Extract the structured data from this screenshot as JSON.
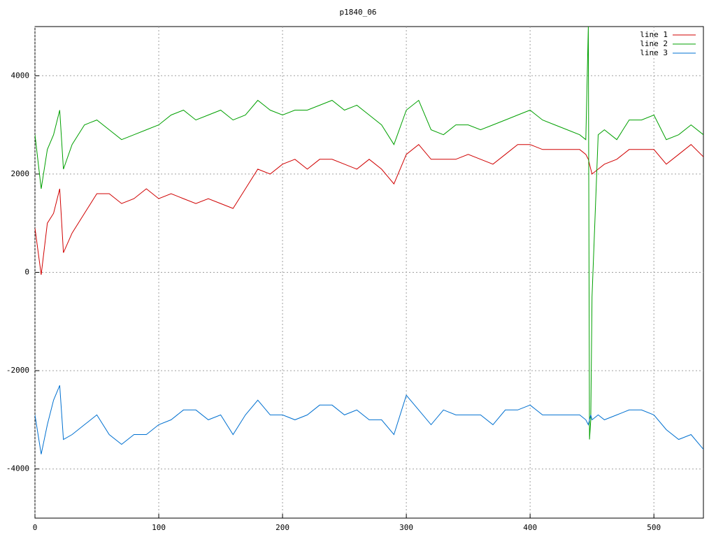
{
  "chart_data": {
    "type": "line",
    "title": "p1840_06",
    "x": [
      0,
      5,
      10,
      15,
      20,
      23,
      30,
      40,
      50,
      60,
      70,
      80,
      90,
      100,
      110,
      120,
      130,
      140,
      150,
      160,
      170,
      180,
      190,
      200,
      210,
      220,
      230,
      240,
      250,
      260,
      270,
      280,
      290,
      300,
      310,
      320,
      330,
      340,
      350,
      360,
      370,
      380,
      390,
      400,
      410,
      420,
      430,
      440,
      445,
      447,
      448,
      449,
      450,
      455,
      460,
      470,
      480,
      490,
      500,
      510,
      520,
      530,
      540
    ],
    "series": [
      {
        "name": "line 1",
        "color": "#d00000",
        "values": [
          900,
          -50,
          1000,
          1200,
          1700,
          400,
          800,
          1200,
          1600,
          1600,
          1400,
          1500,
          1700,
          1500,
          1600,
          1500,
          1400,
          1500,
          1400,
          1300,
          1700,
          2100,
          2000,
          2200,
          2300,
          2100,
          2300,
          2300,
          2200,
          2100,
          2300,
          2100,
          1800,
          2400,
          2600,
          2300,
          2300,
          2300,
          2400,
          2300,
          2200,
          2400,
          2600,
          2600,
          2500,
          2500,
          2500,
          2500,
          2400,
          2300,
          2200,
          2100,
          2000,
          2100,
          2200,
          2300,
          2500,
          2500,
          2500,
          2200,
          2400,
          2600,
          2350
        ]
      },
      {
        "name": "line 2",
        "color": "#00a000",
        "values": [
          2800,
          1700,
          2500,
          2800,
          3300,
          2100,
          2600,
          3000,
          3100,
          2900,
          2700,
          2800,
          2900,
          3000,
          3200,
          3300,
          3100,
          3200,
          3300,
          3100,
          3200,
          3500,
          3300,
          3200,
          3300,
          3300,
          3400,
          3500,
          3300,
          3400,
          3200,
          3000,
          2600,
          3300,
          3500,
          2900,
          2800,
          3000,
          3000,
          2900,
          3000,
          3100,
          3200,
          3300,
          3100,
          3000,
          2900,
          2800,
          2700,
          5000,
          -3400,
          -3000,
          -500,
          2800,
          2900,
          2700,
          3100,
          3100,
          3200,
          2700,
          2800,
          3000,
          2800
        ]
      },
      {
        "name": "line 3",
        "color": "#0070d0",
        "values": [
          -2900,
          -3700,
          -3100,
          -2600,
          -2300,
          -3400,
          -3300,
          -3100,
          -2900,
          -3300,
          -3500,
          -3300,
          -3300,
          -3100,
          -3000,
          -2800,
          -2800,
          -3000,
          -2900,
          -3300,
          -2900,
          -2600,
          -2900,
          -2900,
          -3000,
          -2900,
          -2700,
          -2700,
          -2900,
          -2800,
          -3000,
          -3000,
          -3300,
          -2500,
          -2800,
          -3100,
          -2800,
          -2900,
          -2900,
          -2900,
          -3100,
          -2800,
          -2800,
          -2700,
          -2900,
          -2900,
          -2900,
          -2900,
          -3000,
          -3100,
          -3000,
          -2900,
          -3000,
          -2900,
          -3000,
          -2900,
          -2800,
          -2800,
          -2900,
          -3200,
          -3400,
          -3300,
          -3600
        ]
      }
    ],
    "xlim": [
      0,
      540
    ],
    "ylim": [
      -5000,
      5000
    ],
    "xticks": [
      0,
      100,
      200,
      300,
      400,
      500
    ],
    "yticks": [
      -4000,
      -2000,
      0,
      2000,
      4000
    ],
    "grid": true,
    "legend": "top-right"
  }
}
